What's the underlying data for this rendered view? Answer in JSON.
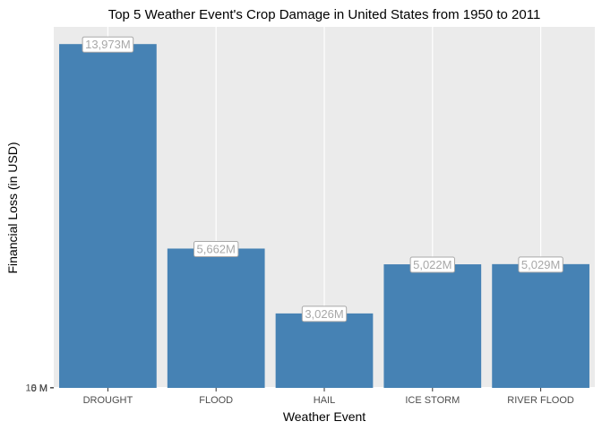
{
  "chart_data": {
    "type": "bar",
    "title": "Top 5 Weather Event's Crop Damage in United States from 1950 to 2011",
    "xlabel": "Weather Event",
    "ylabel": "Financial Loss (in USD)",
    "categories": [
      "DROUGHT",
      "FLOOD",
      "HAIL",
      "ICE STORM",
      "RIVER FLOOD"
    ],
    "values": [
      13972566000,
      5661968450,
      3025954473,
      5022113500,
      5029459000
    ],
    "data_labels": [
      "13,973M",
      "5,662M",
      "3,026M",
      "5,022M",
      "5,029M"
    ],
    "y_ticks": [
      0,
      5000000,
      10000000
    ],
    "y_tick_labels": [
      "0 M",
      "5 M",
      "10 M"
    ],
    "ylim": [
      0,
      14671194300
    ],
    "grid": true,
    "colors": {
      "bar": "#4682B4",
      "panel_background": "#EBEBEB",
      "grid": "#FFFFFF",
      "label_text": "#A8A8A8",
      "label_border": "#A8A8A8",
      "label_fill": "#FFFFFF"
    }
  }
}
